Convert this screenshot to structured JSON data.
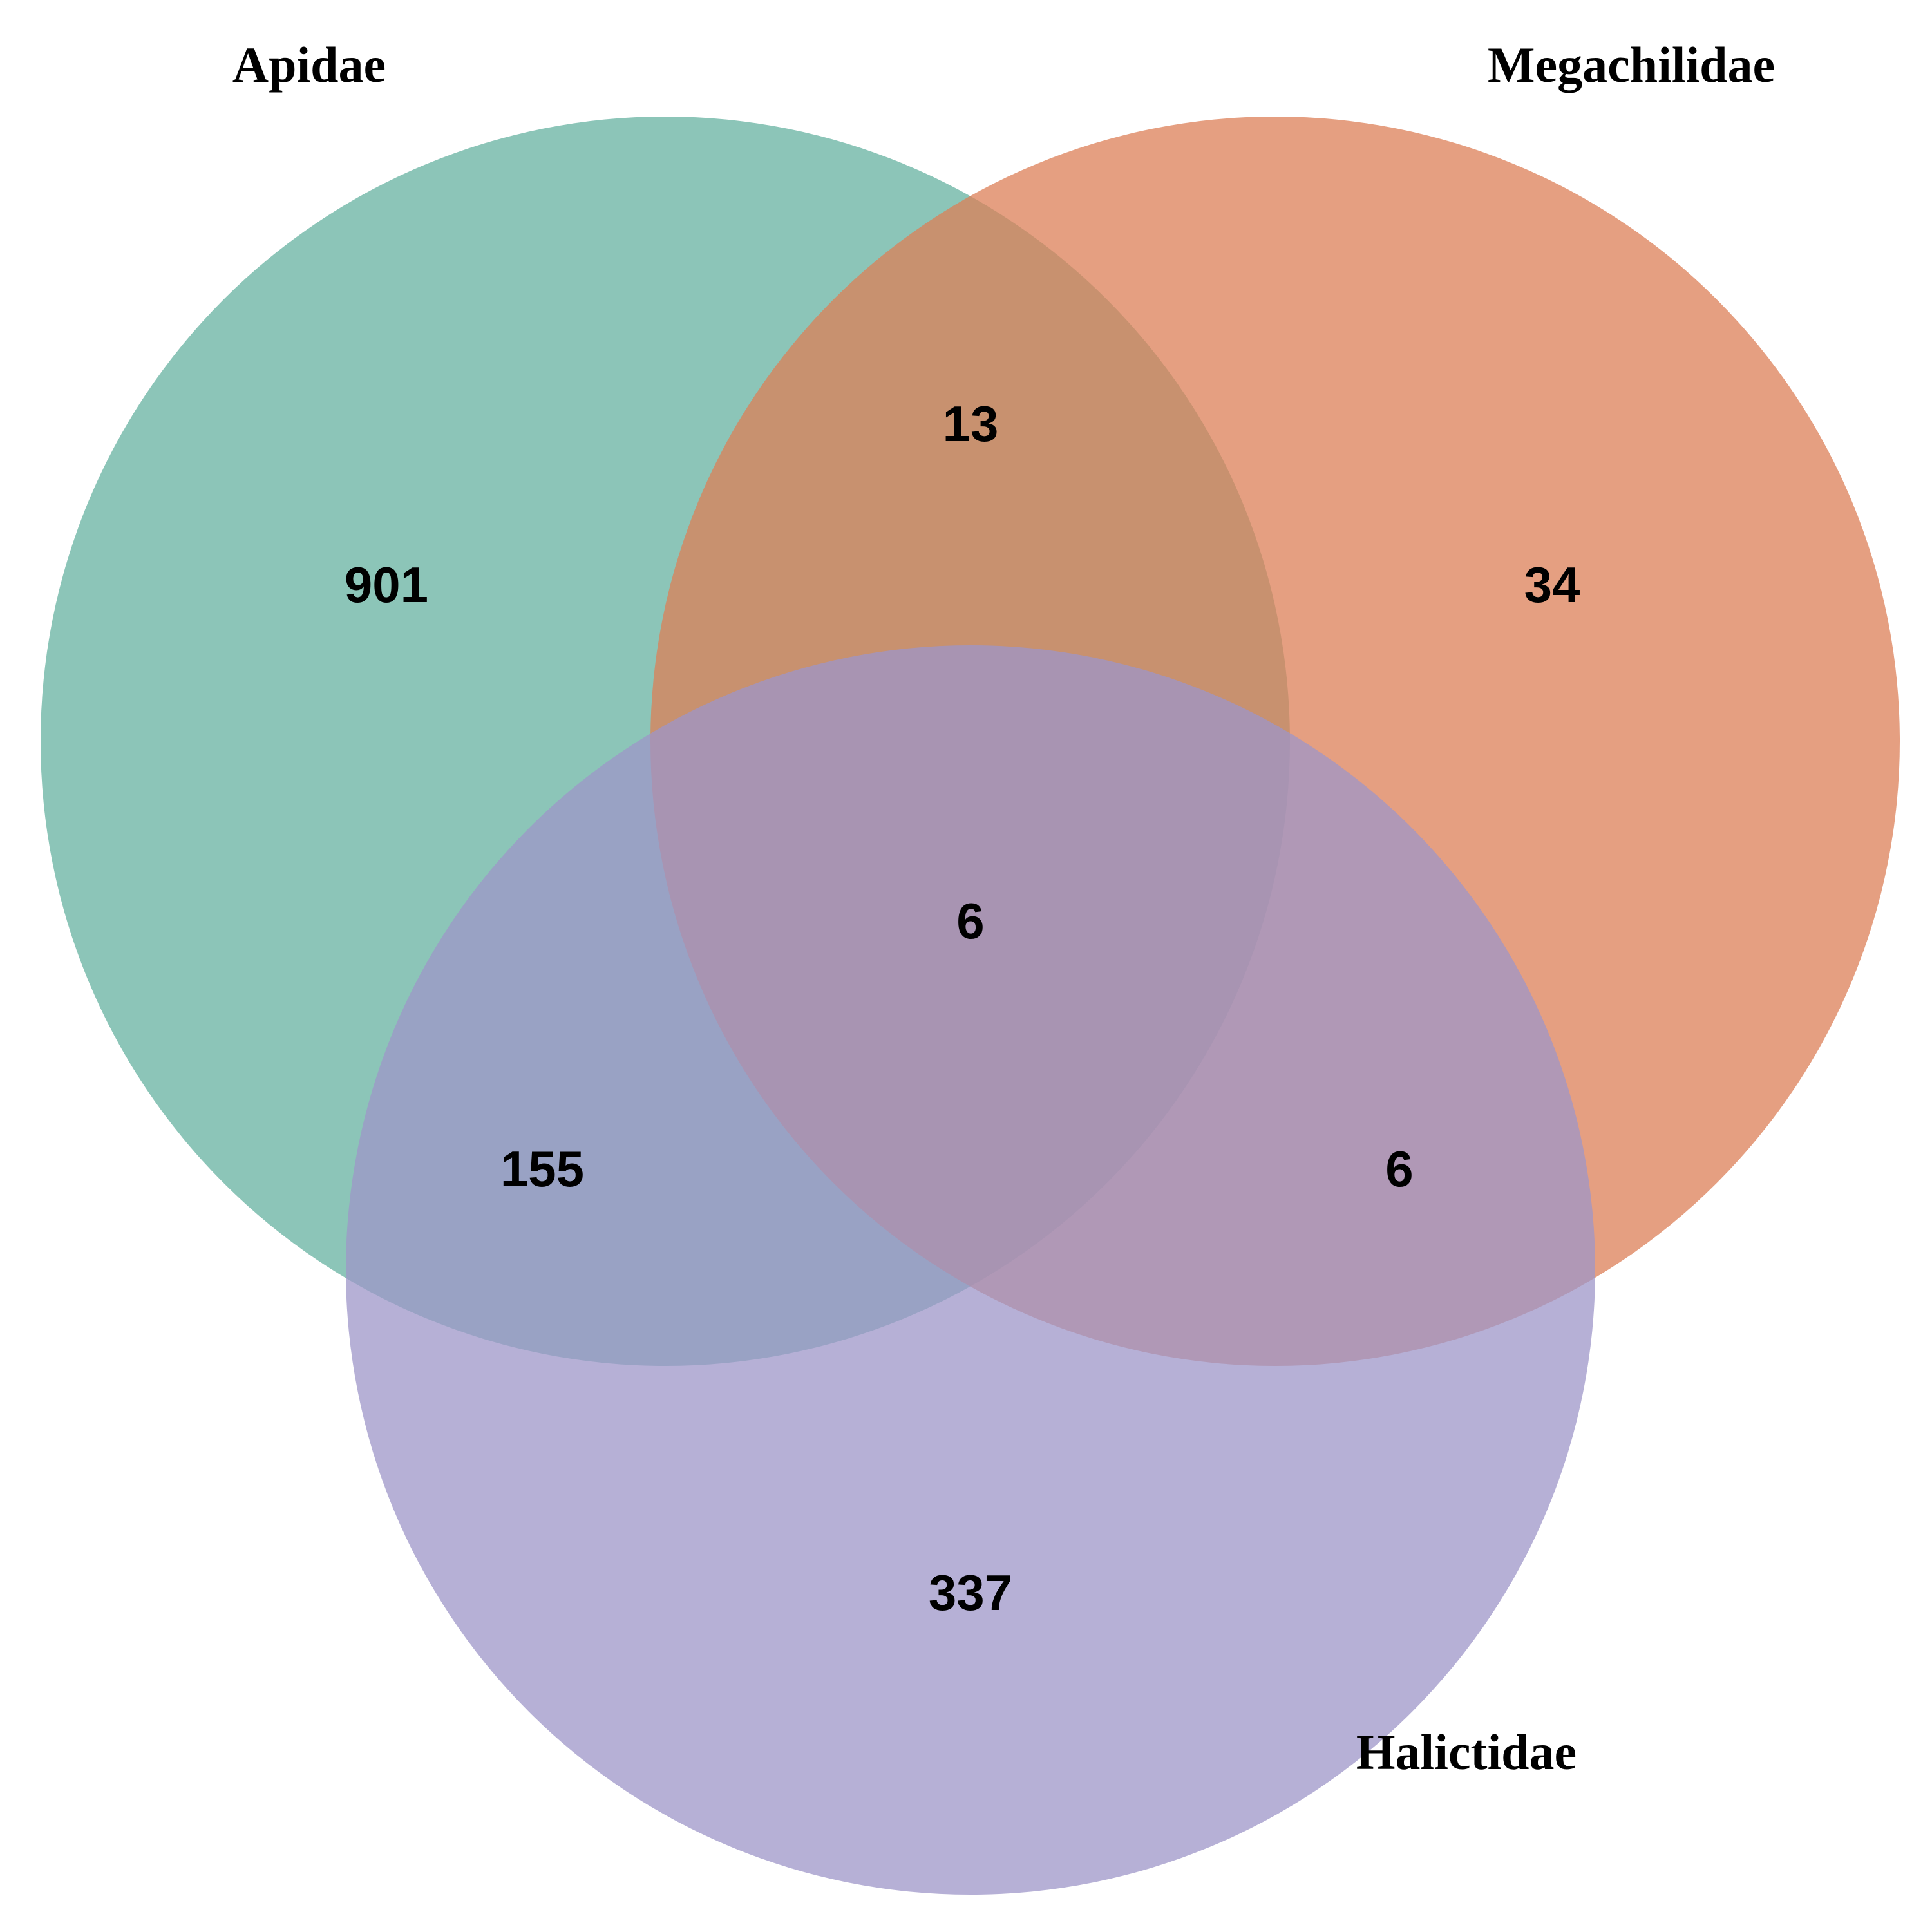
{
  "sets": [
    {
      "key": "A",
      "name": "Apidae",
      "color": "#66b2a0"
    },
    {
      "key": "B",
      "name": "Megachilidae",
      "color": "#dc7f57"
    },
    {
      "key": "C",
      "name": "Halictidae",
      "color": "#9d95c8"
    }
  ],
  "regions": {
    "a_only": "901",
    "b_only": "34",
    "c_only": "337",
    "a_b": "13",
    "a_c": "155",
    "b_c": "6",
    "a_b_c": "6"
  },
  "style": {
    "fill_opacity": 0.75,
    "background": "#ffffff"
  }
}
